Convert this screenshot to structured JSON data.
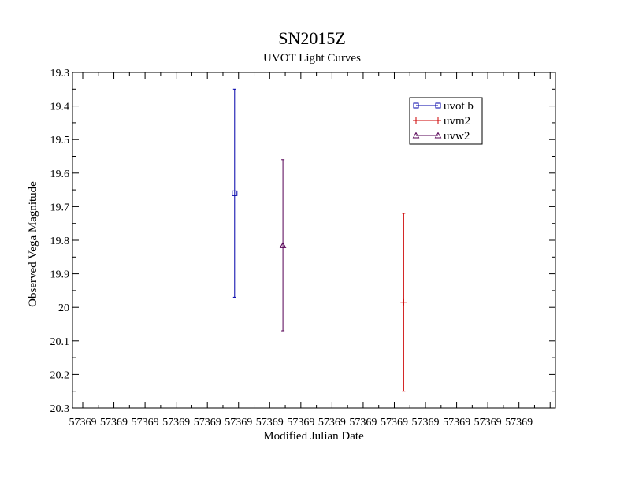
{
  "chart_data": {
    "type": "scatter",
    "title": "SN2015Z",
    "subtitle": "UVOT Light Curves",
    "xlabel": "Modified Julian Date",
    "ylabel": "Observed Vega Magnitude",
    "y_inverted": true,
    "ylim": [
      19.3,
      20.3
    ],
    "yticks": [
      "19.3",
      "19.4",
      "19.5",
      "19.6",
      "19.7",
      "19.8",
      "19.9",
      "20",
      "20.1",
      "20.2",
      "20.3"
    ],
    "xticks": [
      "57369",
      "57369",
      "57369",
      "57369",
      "57369",
      "57369",
      "57369",
      "57369",
      "57369",
      "57369",
      "57369",
      "57369",
      "57369",
      "57369",
      "57369"
    ],
    "grid": false,
    "legend_position": "top-right",
    "series": [
      {
        "name": "uvot b",
        "color": "#0000aa",
        "marker": "square",
        "points": [
          {
            "x": 57369.47,
            "y": 19.66,
            "yerr": 0.31
          }
        ]
      },
      {
        "name": "uvm2",
        "color": "#cc0000",
        "marker": "plus",
        "points": [
          {
            "x": 57369.96,
            "y": 19.985,
            "yerr": 0.265
          }
        ]
      },
      {
        "name": "uvw2",
        "color": "#550055",
        "marker": "triangle",
        "points": [
          {
            "x": 57369.61,
            "y": 19.815,
            "yerr": 0.255
          }
        ]
      }
    ]
  }
}
